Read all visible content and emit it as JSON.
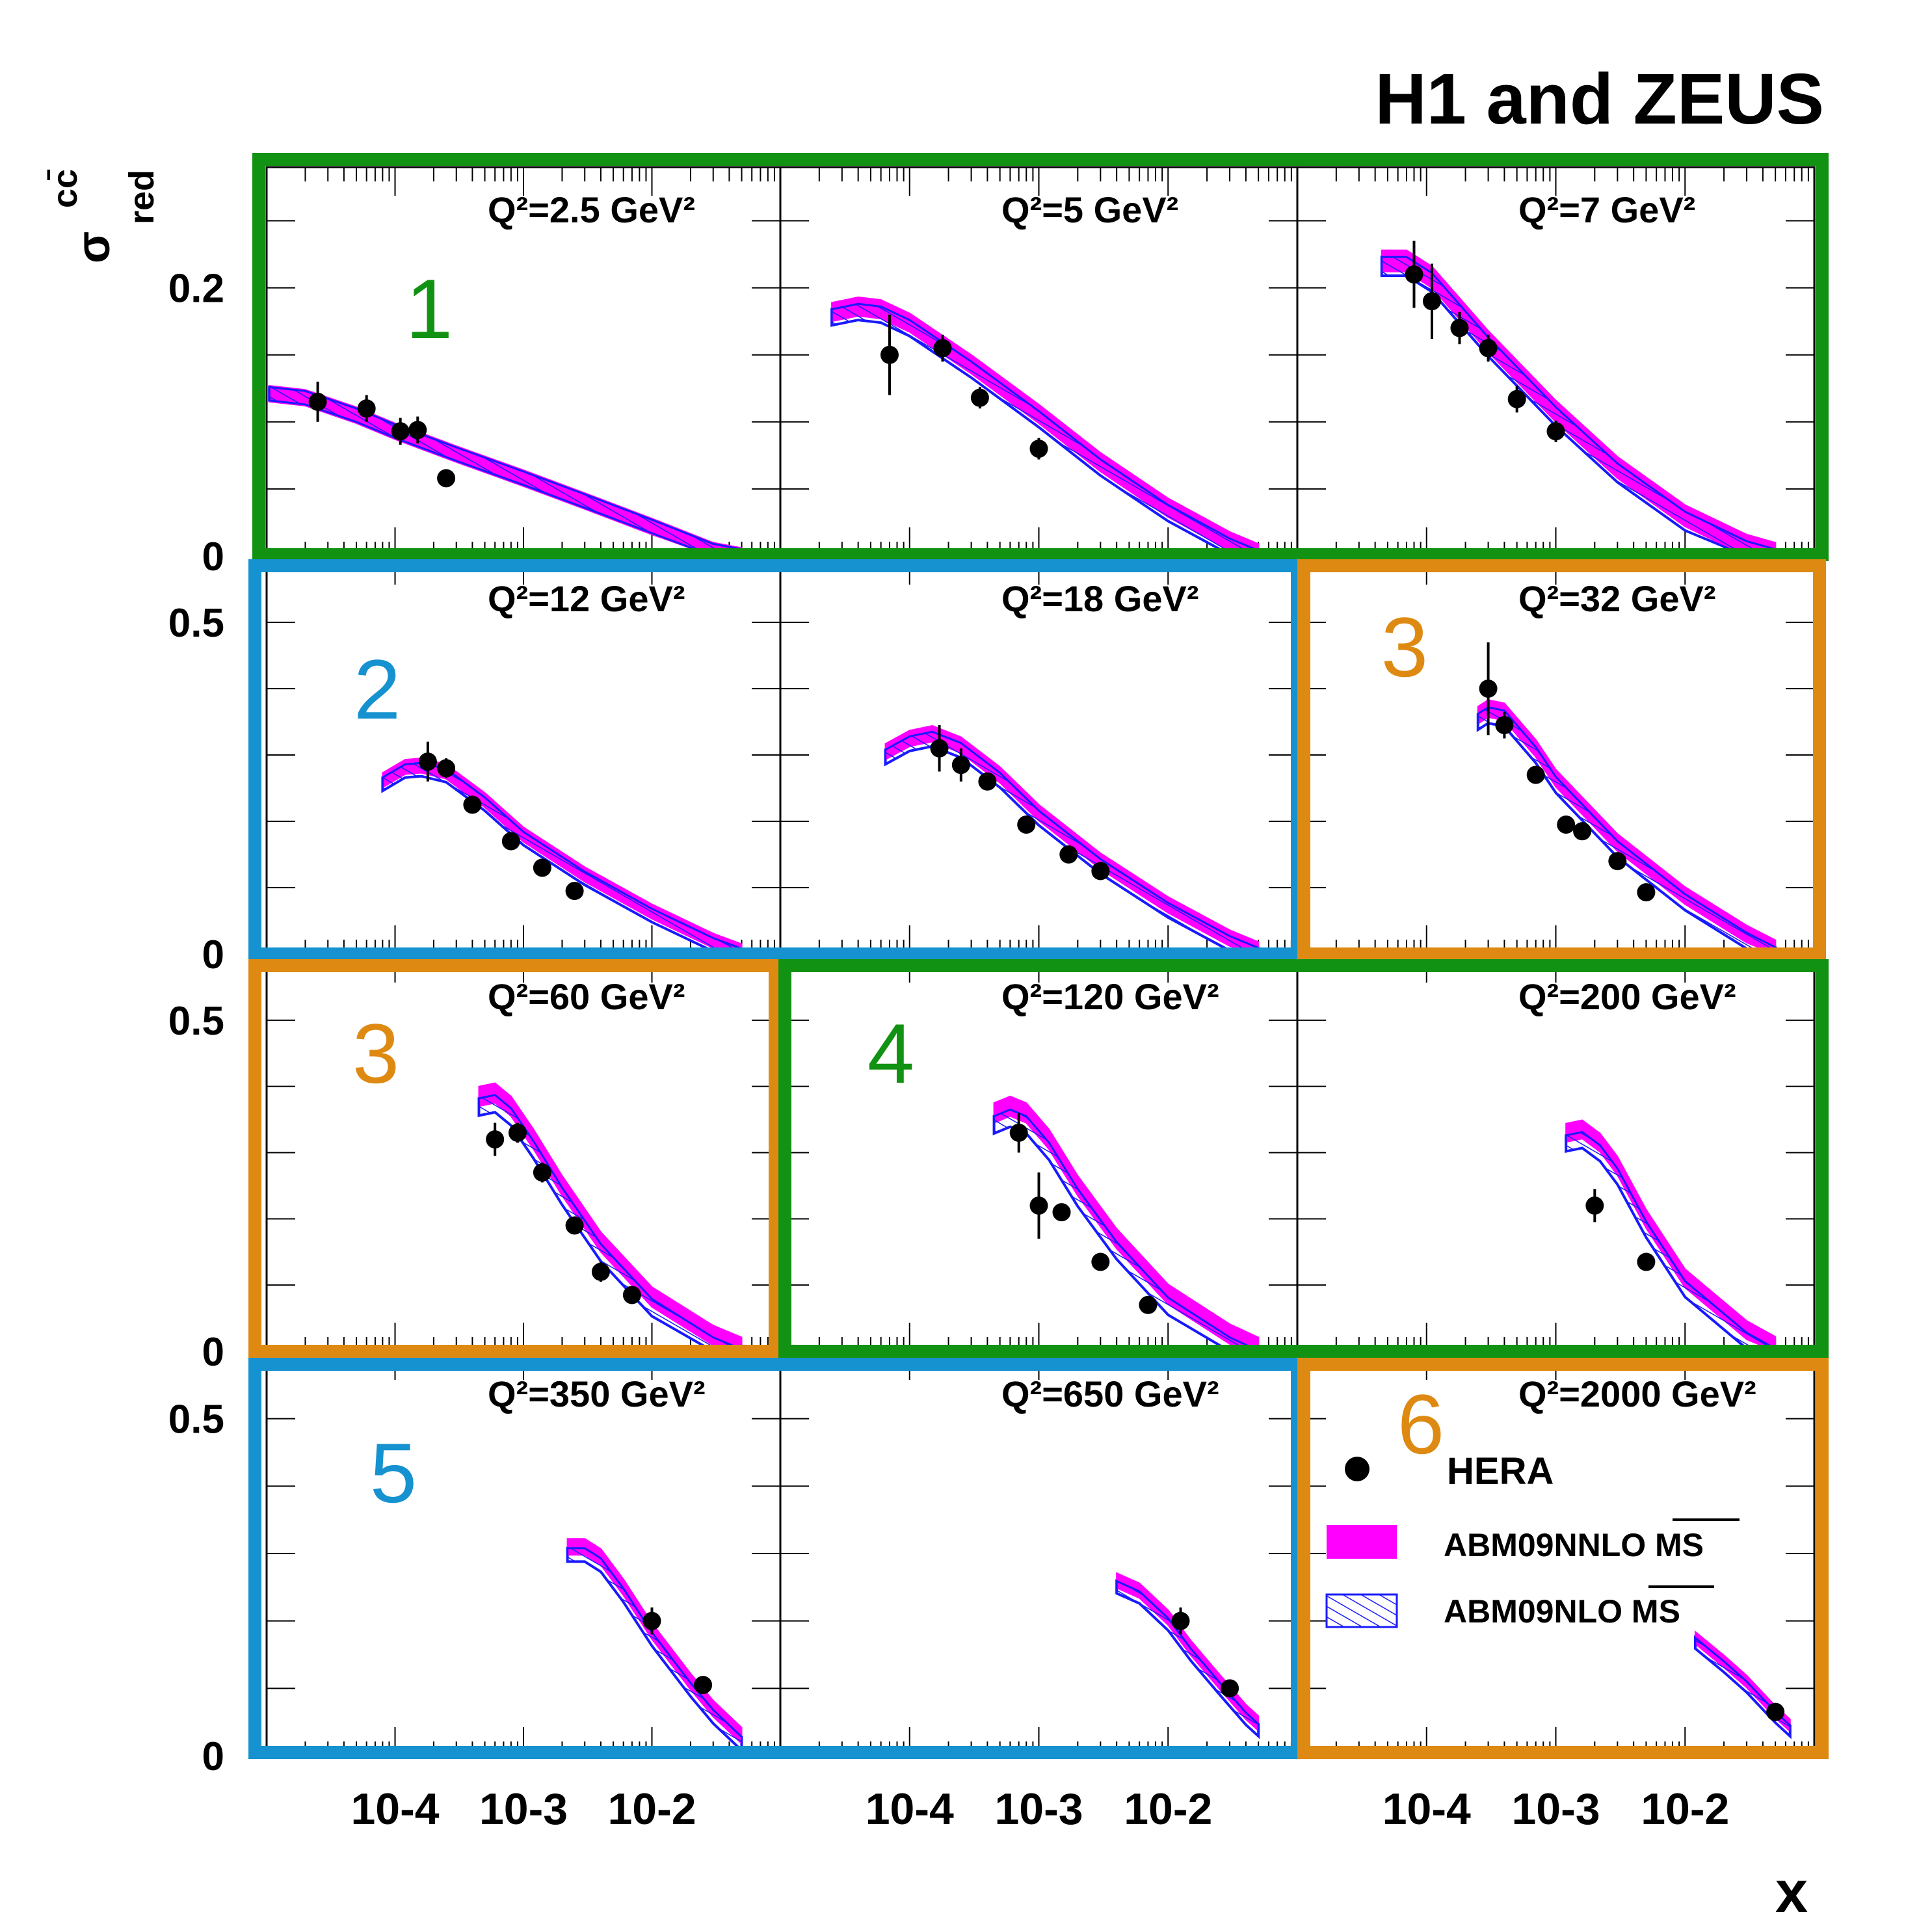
{
  "figure": {
    "experiment_label": "H1 and ZEUS",
    "x_axis_label": "x",
    "y_axis_symbol": "σ",
    "y_axis_superscript": "cc̄",
    "y_axis_subscript": "red"
  },
  "legend": {
    "data_label": "HERA",
    "nnlo_label": "ABM09NNLO MS",
    "nlo_label": "ABM09NLO MS",
    "nnlo_color": "#ff00ff",
    "nlo_color": "#1a1aff"
  },
  "colors": {
    "green": "#129212",
    "blue": "#1592cf",
    "orange": "#de8a12",
    "data": "#000000"
  },
  "groups": [
    {
      "label": "1",
      "color": "green"
    },
    {
      "label": "2",
      "color": "blue"
    },
    {
      "label": "3",
      "color": "orange"
    },
    {
      "label": "4",
      "color": "green"
    },
    {
      "label": "5",
      "color": "blue"
    },
    {
      "label": "6",
      "color": "orange"
    }
  ],
  "chart_data": {
    "type": "scatter",
    "title": "H1 and ZEUS",
    "xlabel": "x",
    "ylabel": "σ red cc̄",
    "x_scale": "log",
    "x_tick_labels": [
      "10-4",
      "10-3",
      "10-2"
    ],
    "x_range": [
      1e-05,
      0.1
    ],
    "row_y_ranges": [
      [
        0,
        0.29
      ],
      [
        0,
        0.6
      ],
      [
        0,
        0.6
      ],
      [
        0,
        0.6
      ]
    ],
    "row_y_tick_labels": [
      [
        "0",
        "0.2"
      ],
      [
        "0",
        "0.5"
      ],
      [
        "0",
        "0.5"
      ],
      [
        "0",
        "0.5"
      ]
    ],
    "grid": false,
    "legend_position": "bottom-right panel",
    "series": [
      {
        "name": "HERA",
        "kind": "points"
      },
      {
        "name": "ABM09NNLO MS",
        "kind": "band"
      },
      {
        "name": "ABM09NLO MS",
        "kind": "band"
      }
    ],
    "panels": [
      {
        "q2_label": "Q²=2.5 GeV²",
        "points": [
          [
            2.5e-05,
            0.115,
            0.015
          ],
          [
            6e-05,
            0.11,
            0.01
          ],
          [
            0.00011,
            0.093,
            0.01
          ],
          [
            0.00015,
            0.094,
            0.01
          ],
          [
            0.00025,
            0.058,
            0.005
          ]
        ],
        "nnlo": [
          [
            1.05e-05,
            0.121
          ],
          [
            2e-05,
            0.118
          ],
          [
            5e-05,
            0.105
          ],
          [
            0.0001,
            0.093
          ],
          [
            0.0003,
            0.076
          ],
          [
            0.001,
            0.058
          ],
          [
            0.003,
            0.041
          ],
          [
            0.01,
            0.022
          ],
          [
            0.03,
            0.004
          ],
          [
            0.05,
            0.0
          ]
        ],
        "nlo_shift": 0.0,
        "nnlo_width": 0.012,
        "nlo_width": 0.01
      },
      {
        "q2_label": "Q²=5 GeV²",
        "points": [
          [
            7e-05,
            0.15,
            0.03
          ],
          [
            0.00018,
            0.155,
            0.01
          ],
          [
            0.00035,
            0.118,
            0.008
          ],
          [
            0.001,
            0.08,
            0.008
          ]
        ],
        "nnlo": [
          [
            2.5e-05,
            0.182
          ],
          [
            4e-05,
            0.186
          ],
          [
            6e-05,
            0.184
          ],
          [
            0.0001,
            0.174
          ],
          [
            0.0003,
            0.143
          ],
          [
            0.001,
            0.106
          ],
          [
            0.003,
            0.07
          ],
          [
            0.01,
            0.036
          ],
          [
            0.03,
            0.011
          ],
          [
            0.05,
            0.002
          ]
        ],
        "nlo_shift": 0.004,
        "nnlo_width": 0.014,
        "nlo_width": 0.012
      },
      {
        "q2_label": "Q²=7 GeV²",
        "points": [
          [
            8e-05,
            0.21,
            0.025
          ],
          [
            0.00011,
            0.19,
            0.028
          ],
          [
            0.00018,
            0.17,
            0.012
          ],
          [
            0.0003,
            0.155,
            0.01
          ],
          [
            0.0005,
            0.117,
            0.01
          ],
          [
            0.001,
            0.093,
            0.008
          ]
        ],
        "nnlo": [
          [
            4.5e-05,
            0.22
          ],
          [
            7e-05,
            0.22
          ],
          [
            0.00011,
            0.208
          ],
          [
            0.0003,
            0.16
          ],
          [
            0.001,
            0.108
          ],
          [
            0.003,
            0.066
          ],
          [
            0.01,
            0.03
          ],
          [
            0.03,
            0.008
          ],
          [
            0.05,
            0.002
          ]
        ],
        "nlo_shift": 0.004,
        "nnlo_width": 0.016,
        "nlo_width": 0.014
      },
      {
        "q2_label": "Q²=12 GeV²",
        "points": [
          [
            0.00018,
            0.29,
            0.03
          ],
          [
            0.00025,
            0.28,
            0.015
          ],
          [
            0.0004,
            0.225,
            0.01
          ],
          [
            0.0008,
            0.17,
            0.01
          ],
          [
            0.0014,
            0.13,
            0.01
          ],
          [
            0.0025,
            0.095,
            0.008
          ]
        ],
        "nnlo": [
          [
            8e-05,
            0.262
          ],
          [
            0.00012,
            0.282
          ],
          [
            0.00016,
            0.284
          ],
          [
            0.00025,
            0.275
          ],
          [
            0.0005,
            0.232
          ],
          [
            0.001,
            0.18
          ],
          [
            0.003,
            0.12
          ],
          [
            0.01,
            0.064
          ],
          [
            0.03,
            0.02
          ],
          [
            0.05,
            0.004
          ]
        ],
        "nlo_shift": 0.006,
        "nnlo_width": 0.022,
        "nlo_width": 0.02
      },
      {
        "q2_label": "Q²=18 GeV²",
        "points": [
          [
            0.00017,
            0.31,
            0.035
          ],
          [
            0.00025,
            0.285,
            0.025
          ],
          [
            0.0004,
            0.26,
            0.012
          ],
          [
            0.0008,
            0.195,
            0.01
          ],
          [
            0.0017,
            0.15,
            0.01
          ],
          [
            0.003,
            0.125,
            0.008
          ]
        ],
        "nnlo": [
          [
            6.5e-05,
            0.305
          ],
          [
            0.0001,
            0.325
          ],
          [
            0.00015,
            0.332
          ],
          [
            0.00025,
            0.315
          ],
          [
            0.0005,
            0.27
          ],
          [
            0.001,
            0.213
          ],
          [
            0.003,
            0.14
          ],
          [
            0.01,
            0.074
          ],
          [
            0.03,
            0.024
          ],
          [
            0.05,
            0.006
          ]
        ],
        "nlo_shift": 0.008,
        "nnlo_width": 0.024,
        "nlo_width": 0.022
      },
      {
        "q2_label": "Q²=32 GeV²",
        "points": [
          [
            0.0003,
            0.4,
            0.07
          ],
          [
            0.0004,
            0.345,
            0.02
          ],
          [
            0.0007,
            0.27,
            0.012
          ],
          [
            0.0012,
            0.195,
            0.01
          ],
          [
            0.0016,
            0.185,
            0.01
          ],
          [
            0.003,
            0.14,
            0.008
          ],
          [
            0.005,
            0.093,
            0.008
          ]
        ],
        "nnlo": [
          [
            0.00025,
            0.36
          ],
          [
            0.0003,
            0.37
          ],
          [
            0.0004,
            0.365
          ],
          [
            0.0007,
            0.31
          ],
          [
            0.001,
            0.265
          ],
          [
            0.003,
            0.168
          ],
          [
            0.01,
            0.088
          ],
          [
            0.03,
            0.03
          ],
          [
            0.05,
            0.008
          ]
        ],
        "nlo_shift": 0.01,
        "nnlo_width": 0.026,
        "nlo_width": 0.024
      },
      {
        "q2_label": "Q²=60 GeV²",
        "points": [
          [
            0.0006,
            0.32,
            0.025
          ],
          [
            0.0009,
            0.33,
            0.015
          ],
          [
            0.0014,
            0.27,
            0.015
          ],
          [
            0.0025,
            0.19,
            0.01
          ],
          [
            0.004,
            0.12,
            0.015
          ],
          [
            0.007,
            0.085,
            0.008
          ]
        ],
        "nnlo": [
          [
            0.00045,
            0.385
          ],
          [
            0.0006,
            0.39
          ],
          [
            0.0008,
            0.37
          ],
          [
            0.0012,
            0.32
          ],
          [
            0.002,
            0.25
          ],
          [
            0.004,
            0.165
          ],
          [
            0.01,
            0.082
          ],
          [
            0.03,
            0.024
          ],
          [
            0.05,
            0.006
          ]
        ],
        "nlo_shift": 0.016,
        "nnlo_width": 0.03,
        "nlo_width": 0.026
      },
      {
        "q2_label": "Q²=120 GeV²",
        "points": [
          [
            0.0007,
            0.33,
            0.03
          ],
          [
            0.001,
            0.22,
            0.05
          ],
          [
            0.0015,
            0.21,
            0.012
          ],
          [
            0.003,
            0.135,
            0.01
          ],
          [
            0.007,
            0.07,
            0.008
          ]
        ],
        "nnlo": [
          [
            0.00045,
            0.36
          ],
          [
            0.0006,
            0.37
          ],
          [
            0.0008,
            0.36
          ],
          [
            0.0012,
            0.32
          ],
          [
            0.002,
            0.25
          ],
          [
            0.004,
            0.17
          ],
          [
            0.01,
            0.086
          ],
          [
            0.03,
            0.026
          ],
          [
            0.05,
            0.006
          ]
        ],
        "nlo_shift": 0.018,
        "nnlo_width": 0.03,
        "nlo_width": 0.026
      },
      {
        "q2_label": "Q²=200 GeV²",
        "points": [
          [
            0.002,
            0.22,
            0.025
          ],
          [
            0.005,
            0.135,
            0.01
          ]
        ],
        "nnlo": [
          [
            0.0012,
            0.33
          ],
          [
            0.0016,
            0.335
          ],
          [
            0.0022,
            0.315
          ],
          [
            0.003,
            0.28
          ],
          [
            0.005,
            0.2
          ],
          [
            0.01,
            0.11
          ],
          [
            0.03,
            0.032
          ],
          [
            0.05,
            0.008
          ]
        ],
        "nlo_shift": 0.016,
        "nnlo_width": 0.028,
        "nlo_width": 0.024
      },
      {
        "q2_label": "Q²=350 GeV²",
        "points": [
          [
            0.01,
            0.2,
            0.02
          ],
          [
            0.025,
            0.105,
            0.008
          ]
        ],
        "nnlo": [
          [
            0.0022,
            0.31
          ],
          [
            0.003,
            0.31
          ],
          [
            0.004,
            0.295
          ],
          [
            0.006,
            0.25
          ],
          [
            0.01,
            0.185
          ],
          [
            0.02,
            0.11
          ],
          [
            0.03,
            0.07
          ],
          [
            0.05,
            0.03
          ]
        ],
        "nlo_shift": 0.012,
        "nnlo_width": 0.024,
        "nlo_width": 0.02
      },
      {
        "q2_label": "Q²=650 GeV²",
        "points": [
          [
            0.0125,
            0.2,
            0.02
          ],
          [
            0.03,
            0.1,
            0.01
          ]
        ],
        "nnlo": [
          [
            0.004,
            0.26
          ],
          [
            0.006,
            0.245
          ],
          [
            0.01,
            0.205
          ],
          [
            0.015,
            0.16
          ],
          [
            0.025,
            0.11
          ],
          [
            0.04,
            0.065
          ],
          [
            0.05,
            0.048
          ]
        ],
        "nlo_shift": 0.01,
        "nnlo_width": 0.022,
        "nlo_width": 0.018
      },
      {
        "q2_label": "Q²=2000 GeV²",
        "points": [
          [
            0.05,
            0.065,
            0.012
          ]
        ],
        "nnlo": [
          [
            0.012,
            0.175
          ],
          [
            0.02,
            0.14
          ],
          [
            0.03,
            0.11
          ],
          [
            0.05,
            0.065
          ],
          [
            0.065,
            0.045
          ]
        ],
        "nlo_shift": 0.008,
        "nnlo_width": 0.018,
        "nlo_width": 0.016
      }
    ]
  }
}
